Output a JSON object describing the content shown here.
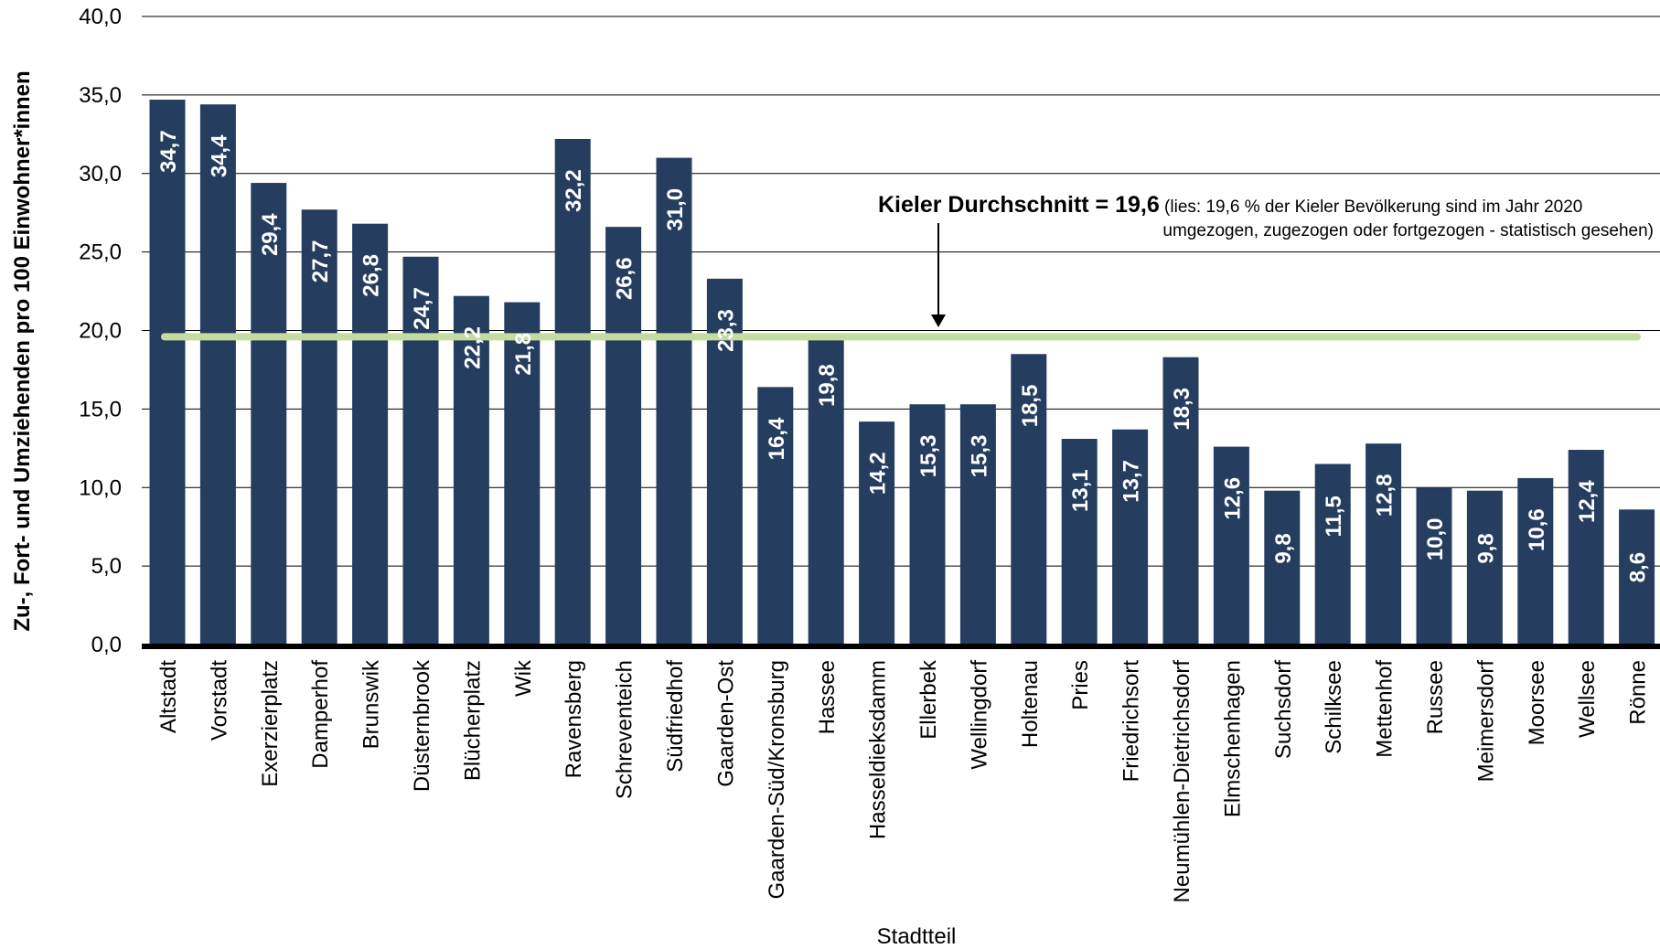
{
  "chart_data": {
    "type": "bar",
    "title": "",
    "xlabel": "Stadtteil",
    "ylabel": "Zu-, Fort- und Umziehenden pro 100 Einwohner*innen",
    "ylim": [
      0,
      40
    ],
    "yticks": [
      "0,0",
      "5,0",
      "10,0",
      "15,0",
      "20,0",
      "25,0",
      "30,0",
      "35,0",
      "40,0"
    ],
    "grid": true,
    "categories": [
      "Altstadt",
      "Vorstadt",
      "Exerzierplatz",
      "Damperhof",
      "Brunswik",
      "Düsternbrook",
      "Blücherplatz",
      "Wik",
      "Ravensberg",
      "Schreventeich",
      "Südfriedhof",
      "Gaarden-Ost",
      "Gaarden-Süd/Kronsburg",
      "Hassee",
      "Hasseldieksdamm",
      "Ellerbek",
      "Wellingdorf",
      "Holtenau",
      "Pries",
      "Friedrichsort",
      "Neumühlen-Dietrichsdorf",
      "Elmschenhagen",
      "Suchsdorf",
      "Schilksee",
      "Mettenhof",
      "Russee",
      "Meimersdorf",
      "Moorsee",
      "Wellsee",
      "Rönne"
    ],
    "values": [
      34.7,
      34.4,
      29.4,
      27.7,
      26.8,
      24.7,
      22.2,
      21.8,
      32.2,
      26.6,
      31.0,
      23.3,
      16.4,
      19.8,
      14.2,
      15.3,
      15.3,
      18.5,
      13.1,
      13.7,
      18.3,
      12.6,
      9.8,
      11.5,
      12.8,
      10.0,
      9.8,
      10.6,
      12.4,
      8.6
    ],
    "value_labels": [
      "34,7",
      "34,4",
      "29,4",
      "27,7",
      "26,8",
      "24,7",
      "22,2",
      "21,8",
      "32,2",
      "26,6",
      "31,0",
      "23,3",
      "16,4",
      "19,8",
      "14,2",
      "15,3",
      "15,3",
      "18,5",
      "13,1",
      "13,7",
      "18,3",
      "12,6",
      "9,8",
      "11,5",
      "12,8",
      "10,0",
      "9,8",
      "10,6",
      "12,4",
      "8,6"
    ],
    "reference_line": {
      "value": 19.6,
      "label_bold": "Kieler Durchschnitt = 19,6",
      "label_line1": " (lies: 19,6 % der Kieler Bevölkerung sind im Jahr 2020",
      "label_line2": "umgezogen, zugezogen oder fortgezogen - statistisch gesehen)"
    },
    "colors": {
      "bar": "#253d5e",
      "reference_line": "#c5dca0",
      "grid": "#000000",
      "axis": "#000000"
    }
  }
}
